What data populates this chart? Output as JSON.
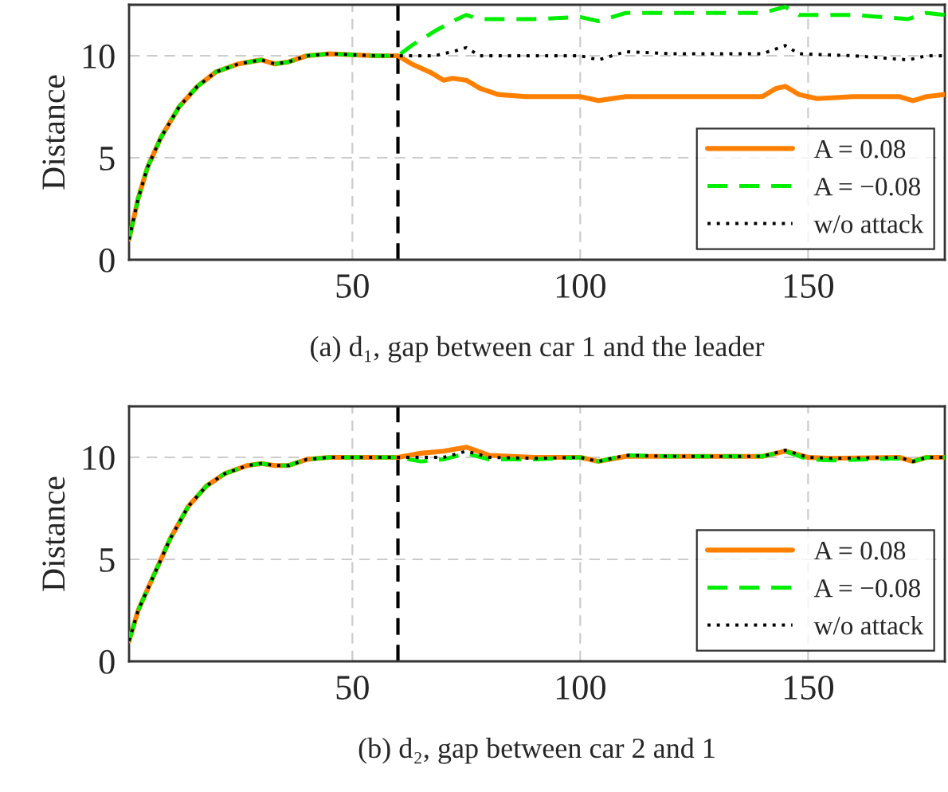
{
  "chart_data": [
    {
      "type": "line",
      "xlabel": "(a) d₁, gap between car 1 and the leader",
      "ylabel": "Distance",
      "xlim": [
        1,
        180
      ],
      "ylim": [
        0,
        12.5
      ],
      "xticks": [
        50,
        100,
        150
      ],
      "yticks": [
        0,
        5,
        10
      ],
      "grid": true,
      "legend": "bottom right",
      "marker": "none",
      "ref_lines": [
        {
          "axis": "x",
          "value": 60,
          "color": "#000000",
          "line_style": "dashed"
        }
      ],
      "series": [
        {
          "name": "A = 0.08",
          "color": "#ff8000",
          "line_style": "solid",
          "x": [
            1,
            3,
            5,
            8,
            12,
            16,
            20,
            25,
            30,
            33,
            36,
            40,
            45,
            50,
            55,
            60,
            63,
            67,
            70,
            72,
            75,
            78,
            82,
            88,
            100,
            104,
            110,
            120,
            140,
            143,
            145,
            148,
            152,
            160,
            170,
            173,
            176,
            180
          ],
          "values": [
            1,
            3,
            4.5,
            6,
            7.5,
            8.5,
            9.2,
            9.6,
            9.8,
            9.6,
            9.7,
            10.0,
            10.1,
            10.05,
            10.0,
            10.0,
            9.6,
            9.2,
            8.8,
            8.9,
            8.8,
            8.4,
            8.1,
            8.0,
            8.0,
            7.8,
            8.0,
            8.0,
            8.0,
            8.4,
            8.5,
            8.1,
            7.9,
            8.0,
            8.0,
            7.8,
            8.0,
            8.1
          ]
        },
        {
          "name": "A = −0.08",
          "color": "#00ee00",
          "line_style": "dashed",
          "x": [
            1,
            3,
            5,
            8,
            12,
            16,
            20,
            25,
            30,
            33,
            36,
            40,
            45,
            50,
            55,
            60,
            63,
            68,
            73,
            75,
            78,
            90,
            100,
            104,
            110,
            120,
            140,
            145,
            148,
            160,
            172,
            176,
            180
          ],
          "values": [
            1,
            3,
            4.5,
            6,
            7.5,
            8.5,
            9.2,
            9.6,
            9.8,
            9.6,
            9.7,
            10.0,
            10.1,
            10.05,
            10.0,
            10.0,
            10.5,
            11.2,
            11.8,
            12.0,
            11.8,
            11.8,
            11.9,
            11.7,
            12.1,
            12.1,
            12.1,
            12.4,
            12.0,
            12.0,
            11.8,
            12.1,
            12.0
          ]
        },
        {
          "name": "w/o attack",
          "color": "#000000",
          "line_style": "dotted",
          "x": [
            1,
            3,
            5,
            8,
            12,
            16,
            20,
            25,
            30,
            33,
            36,
            40,
            45,
            50,
            55,
            60,
            63,
            68,
            72,
            75,
            78,
            90,
            100,
            104,
            110,
            120,
            140,
            145,
            148,
            160,
            172,
            176,
            180
          ],
          "values": [
            1,
            3,
            4.5,
            6,
            7.5,
            8.5,
            9.2,
            9.6,
            9.8,
            9.6,
            9.7,
            10.0,
            10.1,
            10.05,
            10.0,
            10.0,
            10.0,
            10.0,
            10.2,
            10.4,
            10.0,
            10.0,
            10.0,
            9.8,
            10.2,
            10.1,
            10.1,
            10.5,
            10.1,
            10.0,
            9.8,
            10.0,
            10.0
          ]
        }
      ]
    },
    {
      "type": "line",
      "xlabel": "(b) d₂, gap between car 2 and 1",
      "ylabel": "Distance",
      "xlim": [
        1,
        180
      ],
      "ylim": [
        0,
        12.5
      ],
      "xticks": [
        50,
        100,
        150
      ],
      "yticks": [
        0,
        5,
        10
      ],
      "grid": true,
      "legend": "bottom right",
      "marker": "none",
      "ref_lines": [
        {
          "axis": "x",
          "value": 60,
          "color": "#000000",
          "line_style": "dashed"
        }
      ],
      "series": [
        {
          "name": "A = 0.08",
          "color": "#ff8000",
          "line_style": "solid",
          "x": [
            1,
            3,
            6,
            10,
            14,
            18,
            22,
            27,
            30,
            33,
            36,
            40,
            45,
            50,
            60,
            65,
            70,
            75,
            80,
            90,
            100,
            104,
            110,
            120,
            140,
            145,
            150,
            155,
            170,
            173,
            176,
            180
          ],
          "values": [
            1,
            2.5,
            4,
            6,
            7.6,
            8.6,
            9.2,
            9.6,
            9.7,
            9.6,
            9.6,
            9.9,
            10.0,
            10.0,
            10.0,
            10.2,
            10.3,
            10.5,
            10.1,
            10.0,
            10.0,
            9.8,
            10.05,
            10.05,
            10.05,
            10.3,
            10.0,
            9.95,
            10.0,
            9.8,
            10.0,
            10.0
          ]
        },
        {
          "name": "A = −0.08",
          "color": "#00ee00",
          "line_style": "dashed",
          "x": [
            1,
            3,
            6,
            10,
            14,
            18,
            22,
            27,
            30,
            33,
            36,
            40,
            45,
            50,
            60,
            65,
            70,
            75,
            80,
            90,
            100,
            104,
            110,
            120,
            140,
            145,
            150,
            155,
            170,
            173,
            176,
            180
          ],
          "values": [
            1,
            2.5,
            4,
            6,
            7.6,
            8.6,
            9.2,
            9.6,
            9.7,
            9.6,
            9.6,
            9.9,
            10.0,
            10.0,
            10.0,
            9.8,
            9.9,
            10.2,
            9.9,
            9.9,
            10.0,
            9.8,
            10.1,
            10.05,
            10.05,
            10.3,
            9.9,
            9.85,
            9.95,
            9.8,
            10.0,
            10.0
          ]
        },
        {
          "name": "w/o attack",
          "color": "#000000",
          "line_style": "dotted",
          "x": [
            1,
            3,
            6,
            10,
            14,
            18,
            22,
            27,
            30,
            33,
            36,
            40,
            45,
            50,
            60,
            65,
            70,
            75,
            80,
            90,
            100,
            104,
            110,
            120,
            140,
            145,
            150,
            155,
            170,
            173,
            176,
            180
          ],
          "values": [
            1,
            2.5,
            4,
            6,
            7.6,
            8.6,
            9.2,
            9.6,
            9.7,
            9.6,
            9.6,
            9.9,
            10.0,
            10.0,
            10.0,
            10.0,
            10.0,
            10.3,
            10.0,
            9.95,
            10.0,
            9.8,
            10.1,
            10.05,
            10.05,
            10.35,
            10.0,
            9.95,
            10.0,
            9.8,
            10.0,
            10.0
          ]
        }
      ]
    }
  ]
}
